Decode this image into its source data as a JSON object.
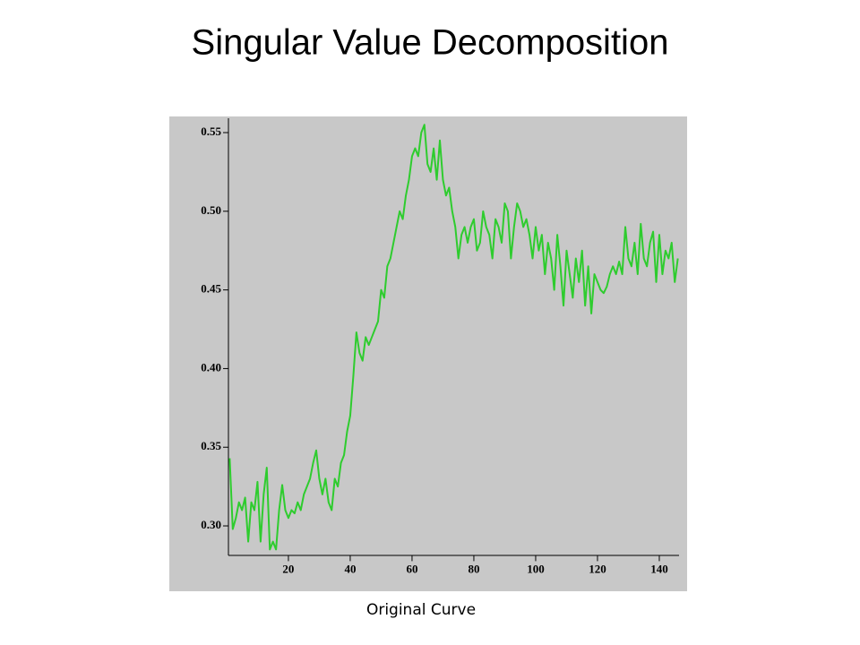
{
  "chart_data": {
    "type": "line",
    "title": "Singular Value Decomposition",
    "caption": "Original Curve",
    "color": "#2ecc2e",
    "x": [
      1,
      2,
      3,
      4,
      5,
      6,
      7,
      8,
      9,
      10,
      11,
      12,
      13,
      14,
      15,
      16,
      17,
      18,
      19,
      20,
      21,
      22,
      23,
      24,
      25,
      26,
      27,
      28,
      29,
      30,
      31,
      32,
      33,
      34,
      35,
      36,
      37,
      38,
      39,
      40,
      41,
      42,
      43,
      44,
      45,
      46,
      47,
      48,
      49,
      50,
      51,
      52,
      53,
      54,
      55,
      56,
      57,
      58,
      59,
      60,
      61,
      62,
      63,
      64,
      65,
      66,
      67,
      68,
      69,
      70,
      71,
      72,
      73,
      74,
      75,
      76,
      77,
      78,
      79,
      80,
      81,
      82,
      83,
      84,
      85,
      86,
      87,
      88,
      89,
      90,
      91,
      92,
      93,
      94,
      95,
      96,
      97,
      98,
      99,
      100,
      101,
      102,
      103,
      104,
      105,
      106,
      107,
      108,
      109,
      110,
      111,
      112,
      113,
      114,
      115,
      116,
      117,
      118,
      119,
      120,
      121,
      122,
      123,
      124,
      125,
      126,
      127,
      128,
      129,
      130,
      131,
      132,
      133,
      134,
      135,
      136,
      137,
      138,
      139,
      140,
      141,
      142,
      143,
      144,
      145,
      146
    ],
    "values": [
      0.343,
      0.298,
      0.305,
      0.315,
      0.31,
      0.318,
      0.29,
      0.315,
      0.31,
      0.328,
      0.29,
      0.32,
      0.337,
      0.285,
      0.29,
      0.285,
      0.31,
      0.326,
      0.31,
      0.305,
      0.31,
      0.308,
      0.315,
      0.31,
      0.32,
      0.325,
      0.33,
      0.34,
      0.348,
      0.33,
      0.32,
      0.33,
      0.315,
      0.31,
      0.33,
      0.325,
      0.34,
      0.345,
      0.36,
      0.37,
      0.395,
      0.423,
      0.41,
      0.405,
      0.42,
      0.415,
      0.42,
      0.425,
      0.43,
      0.45,
      0.445,
      0.465,
      0.47,
      0.48,
      0.49,
      0.5,
      0.495,
      0.51,
      0.52,
      0.535,
      0.54,
      0.535,
      0.55,
      0.555,
      0.53,
      0.525,
      0.54,
      0.52,
      0.545,
      0.52,
      0.51,
      0.515,
      0.5,
      0.49,
      0.47,
      0.485,
      0.49,
      0.48,
      0.49,
      0.495,
      0.475,
      0.48,
      0.5,
      0.49,
      0.485,
      0.47,
      0.495,
      0.49,
      0.48,
      0.505,
      0.5,
      0.47,
      0.49,
      0.505,
      0.5,
      0.49,
      0.495,
      0.485,
      0.47,
      0.49,
      0.475,
      0.485,
      0.46,
      0.48,
      0.47,
      0.45,
      0.485,
      0.465,
      0.44,
      0.475,
      0.46,
      0.445,
      0.47,
      0.455,
      0.475,
      0.44,
      0.465,
      0.435,
      0.46,
      0.455,
      0.45,
      0.448,
      0.452,
      0.46,
      0.465,
      0.46,
      0.468,
      0.46,
      0.49,
      0.47,
      0.465,
      0.48,
      0.46,
      0.492,
      0.47,
      0.465,
      0.48,
      0.487,
      0.455,
      0.485,
      0.46,
      0.475,
      0.47,
      0.48,
      0.455,
      0.47
    ],
    "xlim": [
      0.6,
      146.5
    ],
    "ylim": [
      0.281,
      0.561
    ],
    "xticks": [
      20,
      40,
      60,
      80,
      100,
      120,
      140
    ],
    "yticks": [
      {
        "value": 0.3,
        "label": "0.30"
      },
      0.35,
      {
        "value": 0.4,
        "label": "0.40"
      },
      0.45,
      {
        "value": 0.5,
        "label": "0.50"
      },
      0.55
    ]
  }
}
